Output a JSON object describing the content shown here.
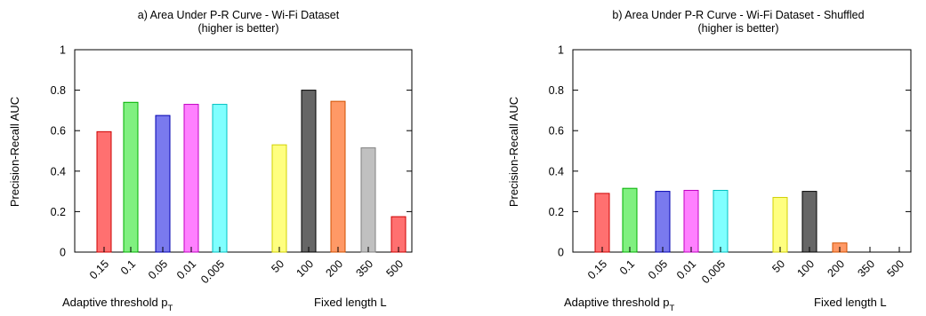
{
  "chart_data": [
    {
      "type": "bar",
      "title": "a) Area Under P-R Curve - Wi-Fi Dataset",
      "subtitle": "(higher is better)",
      "ylabel": "Precision-Recall AUC",
      "ylim": [
        0,
        1
      ],
      "yticks": [
        "0",
        "0.2",
        "0.4",
        "0.6",
        "0.8",
        "1"
      ],
      "groups": [
        {
          "label": "Adaptive threshold p",
          "label_sub": "T"
        },
        {
          "label": "Fixed length L",
          "label_sub": ""
        }
      ],
      "bars": [
        {
          "category": "0.15",
          "group": 0,
          "value": 0.595,
          "color": "#ff7070",
          "edge": "#cc0000"
        },
        {
          "category": "0.1",
          "group": 0,
          "value": 0.74,
          "color": "#80f080",
          "edge": "#00b000"
        },
        {
          "category": "0.05",
          "group": 0,
          "value": 0.675,
          "color": "#7a7aee",
          "edge": "#0000b0"
        },
        {
          "category": "0.01",
          "group": 0,
          "value": 0.73,
          "color": "#ff80ff",
          "edge": "#c000c0"
        },
        {
          "category": "0.005",
          "group": 0,
          "value": 0.73,
          "color": "#80ffff",
          "edge": "#00c0c0"
        },
        {
          "category": "50",
          "group": 1,
          "value": 0.53,
          "color": "#ffff80",
          "edge": "#d0d000"
        },
        {
          "category": "100",
          "group": 1,
          "value": 0.8,
          "color": "#666666",
          "edge": "#000000"
        },
        {
          "category": "200",
          "group": 1,
          "value": 0.745,
          "color": "#ff9966",
          "edge": "#d05000"
        },
        {
          "category": "350",
          "group": 1,
          "value": 0.515,
          "color": "#c0c0c0",
          "edge": "#808080"
        },
        {
          "category": "500",
          "group": 1,
          "value": 0.175,
          "color": "#ff7070",
          "edge": "#cc0000"
        }
      ]
    },
    {
      "type": "bar",
      "title": "b) Area Under P-R Curve - Wi-Fi Dataset - Shuffled",
      "subtitle": "(higher is better)",
      "ylabel": "Precision-Recall AUC",
      "ylim": [
        0,
        1
      ],
      "yticks": [
        "0",
        "0.2",
        "0.4",
        "0.6",
        "0.8",
        "1"
      ],
      "groups": [
        {
          "label": "Adaptive threshold p",
          "label_sub": "T"
        },
        {
          "label": "Fixed length L",
          "label_sub": ""
        }
      ],
      "bars": [
        {
          "category": "0.15",
          "group": 0,
          "value": 0.29,
          "color": "#ff7070",
          "edge": "#cc0000"
        },
        {
          "category": "0.1",
          "group": 0,
          "value": 0.315,
          "color": "#80f080",
          "edge": "#00b000"
        },
        {
          "category": "0.05",
          "group": 0,
          "value": 0.3,
          "color": "#7a7aee",
          "edge": "#0000b0"
        },
        {
          "category": "0.01",
          "group": 0,
          "value": 0.305,
          "color": "#ff80ff",
          "edge": "#c000c0"
        },
        {
          "category": "0.005",
          "group": 0,
          "value": 0.305,
          "color": "#80ffff",
          "edge": "#00c0c0"
        },
        {
          "category": "50",
          "group": 1,
          "value": 0.27,
          "color": "#ffff80",
          "edge": "#d0d000"
        },
        {
          "category": "100",
          "group": 1,
          "value": 0.3,
          "color": "#666666",
          "edge": "#000000"
        },
        {
          "category": "200",
          "group": 1,
          "value": 0.045,
          "color": "#ff9966",
          "edge": "#d05000"
        },
        {
          "category": "350",
          "group": 1,
          "value": 0,
          "color": "#c0c0c0",
          "edge": "#808080"
        },
        {
          "category": "500",
          "group": 1,
          "value": 0,
          "color": "#ff7070",
          "edge": "#cc0000"
        }
      ]
    }
  ]
}
